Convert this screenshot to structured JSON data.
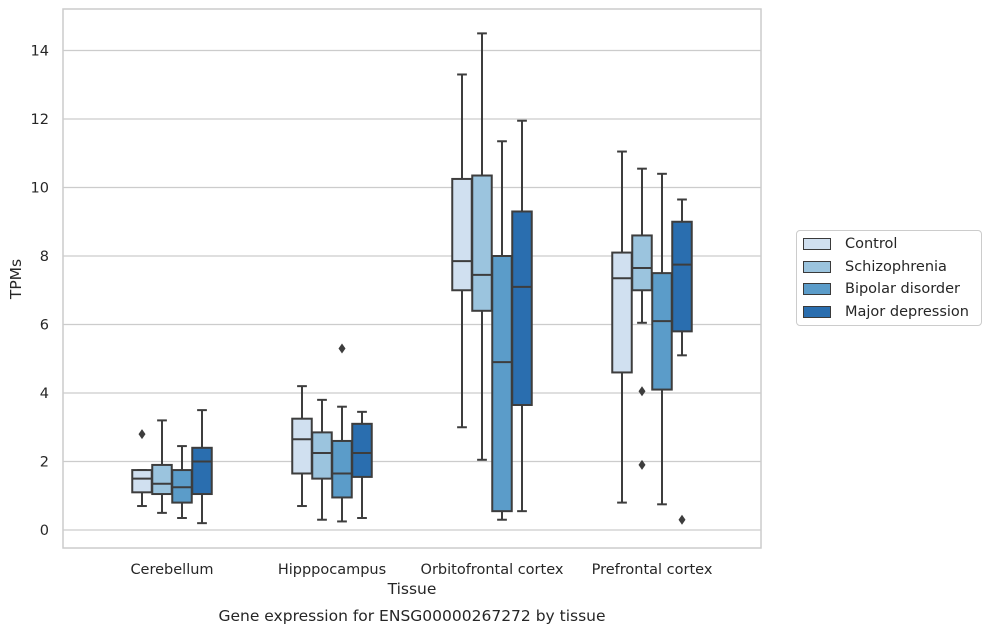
{
  "chart_data": {
    "type": "box",
    "title": "Gene expression for ENSG00000267272 by tissue",
    "xlabel": "Tissue",
    "ylabel": "TPMs",
    "ylim": [
      -0.5,
      15.2
    ],
    "yticks": [
      0,
      2,
      4,
      6,
      8,
      10,
      12,
      14
    ],
    "grid": "horizontal",
    "legend_position": "right",
    "categories": [
      "Cerebellum",
      "Hipppocampus",
      "Orbitofrontal cortex",
      "Prefrontal cortex"
    ],
    "series": [
      {
        "name": "Control",
        "color": "#d0e0f0",
        "boxes": [
          {
            "min": 0.7,
            "q1": 1.1,
            "median": 1.5,
            "q3": 1.75,
            "max": 1.75,
            "outliers": [
              2.8
            ]
          },
          {
            "min": 0.7,
            "q1": 1.65,
            "median": 2.65,
            "q3": 3.25,
            "max": 4.2,
            "outliers": []
          },
          {
            "min": 3.0,
            "q1": 7.0,
            "median": 7.85,
            "q3": 10.25,
            "max": 13.3,
            "outliers": []
          },
          {
            "min": 0.8,
            "q1": 4.6,
            "median": 7.35,
            "q3": 8.1,
            "max": 11.05,
            "outliers": []
          }
        ]
      },
      {
        "name": "Schizophrenia",
        "color": "#9bc4de",
        "boxes": [
          {
            "min": 0.5,
            "q1": 1.05,
            "median": 1.35,
            "q3": 1.9,
            "max": 3.2,
            "outliers": []
          },
          {
            "min": 0.3,
            "q1": 1.5,
            "median": 2.25,
            "q3": 2.85,
            "max": 3.8,
            "outliers": []
          },
          {
            "min": 2.05,
            "q1": 6.4,
            "median": 7.45,
            "q3": 10.35,
            "max": 14.5,
            "outliers": []
          },
          {
            "min": 6.05,
            "q1": 7.0,
            "median": 7.65,
            "q3": 8.6,
            "max": 10.55,
            "outliers": [
              4.05,
              1.9
            ]
          }
        ]
      },
      {
        "name": "Bipolar disorder",
        "color": "#5b9cc9",
        "boxes": [
          {
            "min": 0.35,
            "q1": 0.8,
            "median": 1.25,
            "q3": 1.75,
            "max": 2.45,
            "outliers": []
          },
          {
            "min": 0.25,
            "q1": 0.95,
            "median": 1.65,
            "q3": 2.6,
            "max": 3.6,
            "outliers": [
              5.3
            ]
          },
          {
            "min": 0.3,
            "q1": 0.55,
            "median": 4.9,
            "q3": 8.0,
            "max": 11.35,
            "outliers": []
          },
          {
            "min": 0.75,
            "q1": 4.1,
            "median": 6.1,
            "q3": 7.5,
            "max": 10.4,
            "outliers": []
          }
        ]
      },
      {
        "name": "Major depression",
        "color": "#2a6eaf",
        "boxes": [
          {
            "min": 0.2,
            "q1": 1.05,
            "median": 2.0,
            "q3": 2.4,
            "max": 3.5,
            "outliers": []
          },
          {
            "min": 0.35,
            "q1": 1.55,
            "median": 2.25,
            "q3": 3.1,
            "max": 3.45,
            "outliers": []
          },
          {
            "min": 0.55,
            "q1": 3.65,
            "median": 7.1,
            "q3": 9.3,
            "max": 11.95,
            "outliers": []
          },
          {
            "min": 5.1,
            "q1": 5.8,
            "median": 7.75,
            "q3": 9.0,
            "max": 9.65,
            "outliers": [
              0.3
            ]
          }
        ]
      }
    ]
  }
}
